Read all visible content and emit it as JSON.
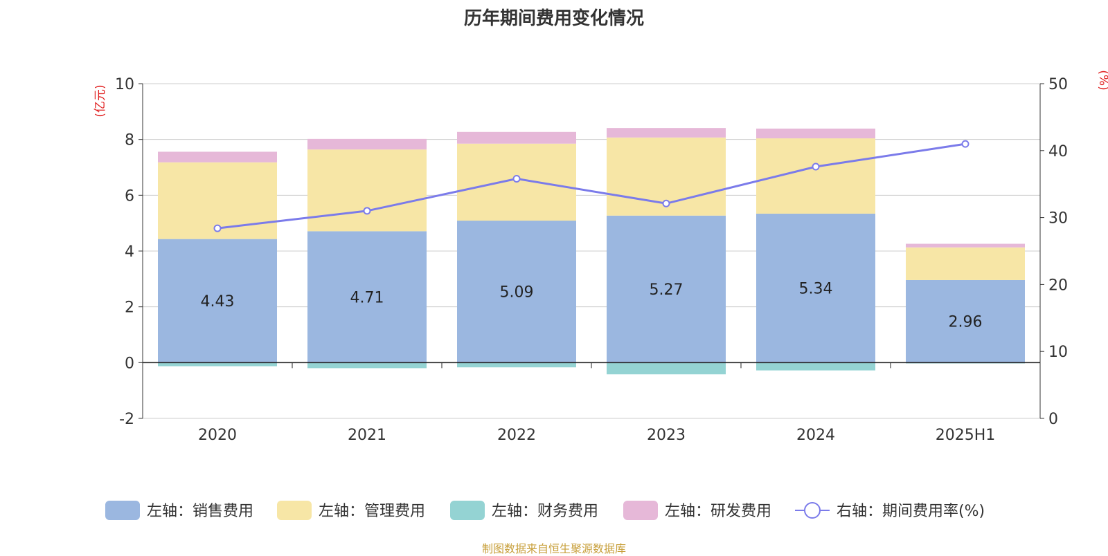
{
  "title": "历年期间费用变化情况",
  "source": "制图数据来自恒生聚源数据库",
  "colors": {
    "sales": "#9bb7e0",
    "admin": "#f7e6a6",
    "finance": "#94d3d3",
    "rd": "#e6b8d8",
    "rate": "#7b7bea",
    "axis_unit": "#e02020"
  },
  "chart_data": {
    "type": "bar",
    "stacked": true,
    "categories": [
      "2020",
      "2021",
      "2022",
      "2023",
      "2024",
      "2025H1"
    ],
    "left_axis": {
      "unit_label": "(亿元)",
      "ylim": [
        -2,
        10
      ],
      "ticks": [
        -2,
        0,
        2,
        4,
        6,
        8,
        10
      ]
    },
    "right_axis": {
      "unit_label": "(%)",
      "ylim": [
        0,
        50
      ],
      "ticks": [
        0,
        10,
        20,
        30,
        40,
        50
      ]
    },
    "series": [
      {
        "name": "左轴：销售费用",
        "key": "sales",
        "axis": "left",
        "values": [
          4.43,
          4.71,
          5.09,
          5.27,
          5.34,
          2.96
        ],
        "show_labels": true
      },
      {
        "name": "左轴：管理费用",
        "key": "admin",
        "axis": "left",
        "values": [
          2.75,
          2.93,
          2.76,
          2.8,
          2.7,
          1.17
        ]
      },
      {
        "name": "左轴：财务费用",
        "key": "finance",
        "axis": "left",
        "values": [
          -0.13,
          -0.2,
          -0.17,
          -0.42,
          -0.28,
          -0.03
        ]
      },
      {
        "name": "左轴：研发费用",
        "key": "rd",
        "axis": "left",
        "values": [
          0.38,
          0.38,
          0.42,
          0.34,
          0.35,
          0.13
        ]
      },
      {
        "name": "右轴：期间费用率(%)",
        "key": "rate",
        "axis": "right",
        "type": "line",
        "values": [
          28.4,
          31.0,
          35.8,
          32.1,
          37.6,
          41.0
        ]
      }
    ],
    "grid": true,
    "legend_position": "bottom"
  }
}
